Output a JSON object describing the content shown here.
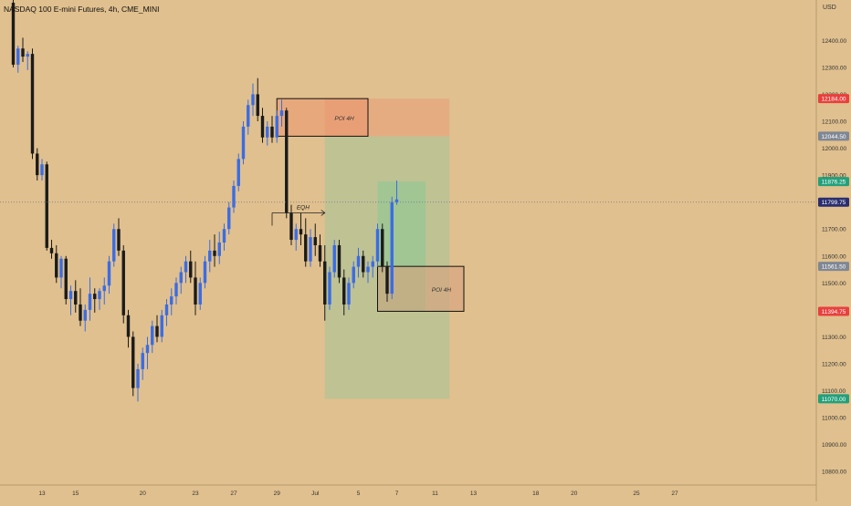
{
  "chart_data": {
    "type": "candlestick",
    "title": "NASDAQ 100 E-mini Futures, 4h, CME_MINI",
    "price_unit": "USD",
    "ylim": [
      10750,
      12550
    ],
    "y_ticks": [
      10800,
      10900,
      11000,
      11100,
      11200,
      11300,
      11400,
      11500,
      11600,
      11700,
      11800,
      11900,
      12000,
      12100,
      12200,
      12300,
      12400
    ],
    "x_tick_labels": [
      {
        "label": "13",
        "bar": 6
      },
      {
        "label": "15",
        "bar": 13
      },
      {
        "label": "20",
        "bar": 27
      },
      {
        "label": "23",
        "bar": 38
      },
      {
        "label": "27",
        "bar": 46
      },
      {
        "label": "29",
        "bar": 55
      },
      {
        "label": "Jul",
        "bar": 63
      },
      {
        "label": "5",
        "bar": 72
      },
      {
        "label": "7",
        "bar": 80
      },
      {
        "label": "11",
        "bar": 88
      },
      {
        "label": "13",
        "bar": 96
      },
      {
        "label": "18",
        "bar": 109
      },
      {
        "label": "20",
        "bar": 117
      },
      {
        "label": "25",
        "bar": 130
      },
      {
        "label": "27",
        "bar": 138
      }
    ],
    "up_color": "#3b6ce4",
    "down_color": "#1b1b1b",
    "candles": [
      {
        "o": 12540,
        "h": 12560,
        "l": 12300,
        "c": 12310
      },
      {
        "o": 12310,
        "h": 12380,
        "l": 12280,
        "c": 12370
      },
      {
        "o": 12370,
        "h": 12410,
        "l": 12320,
        "c": 12340
      },
      {
        "o": 12340,
        "h": 12360,
        "l": 12290,
        "c": 12350
      },
      {
        "o": 12350,
        "h": 12370,
        "l": 11960,
        "c": 11980
      },
      {
        "o": 11980,
        "h": 12000,
        "l": 11880,
        "c": 11900
      },
      {
        "o": 11900,
        "h": 11960,
        "l": 11880,
        "c": 11940
      },
      {
        "o": 11940,
        "h": 11950,
        "l": 11620,
        "c": 11630
      },
      {
        "o": 11630,
        "h": 11660,
        "l": 11590,
        "c": 11610
      },
      {
        "o": 11610,
        "h": 11640,
        "l": 11500,
        "c": 11520
      },
      {
        "o": 11520,
        "h": 11600,
        "l": 11480,
        "c": 11590
      },
      {
        "o": 11590,
        "h": 11600,
        "l": 11420,
        "c": 11440
      },
      {
        "o": 11440,
        "h": 11490,
        "l": 11380,
        "c": 11470
      },
      {
        "o": 11470,
        "h": 11510,
        "l": 11390,
        "c": 11420
      },
      {
        "o": 11420,
        "h": 11480,
        "l": 11340,
        "c": 11360
      },
      {
        "o": 11360,
        "h": 11420,
        "l": 11320,
        "c": 11400
      },
      {
        "o": 11400,
        "h": 11520,
        "l": 11360,
        "c": 11460
      },
      {
        "o": 11460,
        "h": 11480,
        "l": 11390,
        "c": 11440
      },
      {
        "o": 11440,
        "h": 11480,
        "l": 11400,
        "c": 11470
      },
      {
        "o": 11470,
        "h": 11520,
        "l": 11420,
        "c": 11490
      },
      {
        "o": 11490,
        "h": 11600,
        "l": 11460,
        "c": 11580
      },
      {
        "o": 11580,
        "h": 11720,
        "l": 11560,
        "c": 11700
      },
      {
        "o": 11700,
        "h": 11740,
        "l": 11600,
        "c": 11620
      },
      {
        "o": 11620,
        "h": 11640,
        "l": 11350,
        "c": 11380
      },
      {
        "o": 11380,
        "h": 11400,
        "l": 11260,
        "c": 11300
      },
      {
        "o": 11300,
        "h": 11320,
        "l": 11080,
        "c": 11110
      },
      {
        "o": 11110,
        "h": 11200,
        "l": 11060,
        "c": 11180
      },
      {
        "o": 11180,
        "h": 11260,
        "l": 11140,
        "c": 11240
      },
      {
        "o": 11240,
        "h": 11300,
        "l": 11180,
        "c": 11270
      },
      {
        "o": 11270,
        "h": 11360,
        "l": 11240,
        "c": 11340
      },
      {
        "o": 11340,
        "h": 11380,
        "l": 11280,
        "c": 11300
      },
      {
        "o": 11300,
        "h": 11400,
        "l": 11280,
        "c": 11380
      },
      {
        "o": 11380,
        "h": 11440,
        "l": 11340,
        "c": 11420
      },
      {
        "o": 11420,
        "h": 11480,
        "l": 11380,
        "c": 11450
      },
      {
        "o": 11450,
        "h": 11520,
        "l": 11420,
        "c": 11500
      },
      {
        "o": 11500,
        "h": 11560,
        "l": 11460,
        "c": 11540
      },
      {
        "o": 11540,
        "h": 11600,
        "l": 11500,
        "c": 11580
      },
      {
        "o": 11580,
        "h": 11620,
        "l": 11500,
        "c": 11520
      },
      {
        "o": 11520,
        "h": 11580,
        "l": 11380,
        "c": 11420
      },
      {
        "o": 11420,
        "h": 11520,
        "l": 11400,
        "c": 11500
      },
      {
        "o": 11500,
        "h": 11600,
        "l": 11480,
        "c": 11580
      },
      {
        "o": 11580,
        "h": 11660,
        "l": 11540,
        "c": 11620
      },
      {
        "o": 11620,
        "h": 11680,
        "l": 11560,
        "c": 11600
      },
      {
        "o": 11600,
        "h": 11690,
        "l": 11570,
        "c": 11650
      },
      {
        "o": 11650,
        "h": 11720,
        "l": 11620,
        "c": 11700
      },
      {
        "o": 11700,
        "h": 11800,
        "l": 11680,
        "c": 11780
      },
      {
        "o": 11780,
        "h": 11880,
        "l": 11760,
        "c": 11860
      },
      {
        "o": 11860,
        "h": 11980,
        "l": 11840,
        "c": 11960
      },
      {
        "o": 11960,
        "h": 12100,
        "l": 11940,
        "c": 12080
      },
      {
        "o": 12080,
        "h": 12180,
        "l": 12050,
        "c": 12160
      },
      {
        "o": 12160,
        "h": 12240,
        "l": 12120,
        "c": 12200
      },
      {
        "o": 12200,
        "h": 12260,
        "l": 12100,
        "c": 12120
      },
      {
        "o": 12120,
        "h": 12150,
        "l": 12020,
        "c": 12040
      },
      {
        "o": 12040,
        "h": 12100,
        "l": 12010,
        "c": 12080
      },
      {
        "o": 12080,
        "h": 12120,
        "l": 12020,
        "c": 12040
      },
      {
        "o": 12040,
        "h": 12140,
        "l": 12020,
        "c": 12120
      },
      {
        "o": 12120,
        "h": 12180,
        "l": 12080,
        "c": 12140
      },
      {
        "o": 12140,
        "h": 12150,
        "l": 11740,
        "c": 11760
      },
      {
        "o": 11760,
        "h": 11790,
        "l": 11640,
        "c": 11660
      },
      {
        "o": 11660,
        "h": 11720,
        "l": 11620,
        "c": 11700
      },
      {
        "o": 11700,
        "h": 11760,
        "l": 11640,
        "c": 11680
      },
      {
        "o": 11680,
        "h": 11740,
        "l": 11560,
        "c": 11580
      },
      {
        "o": 11580,
        "h": 11700,
        "l": 11560,
        "c": 11670
      },
      {
        "o": 11670,
        "h": 11720,
        "l": 11600,
        "c": 11640
      },
      {
        "o": 11640,
        "h": 11680,
        "l": 11560,
        "c": 11580
      },
      {
        "o": 11580,
        "h": 11640,
        "l": 11360,
        "c": 11420
      },
      {
        "o": 11420,
        "h": 11560,
        "l": 11400,
        "c": 11540
      },
      {
        "o": 11540,
        "h": 11660,
        "l": 11520,
        "c": 11640
      },
      {
        "o": 11640,
        "h": 11660,
        "l": 11500,
        "c": 11520
      },
      {
        "o": 11520,
        "h": 11550,
        "l": 11380,
        "c": 11420
      },
      {
        "o": 11420,
        "h": 11520,
        "l": 11400,
        "c": 11500
      },
      {
        "o": 11500,
        "h": 11580,
        "l": 11480,
        "c": 11560
      },
      {
        "o": 11560,
        "h": 11630,
        "l": 11520,
        "c": 11600
      },
      {
        "o": 11600,
        "h": 11620,
        "l": 11520,
        "c": 11540
      },
      {
        "o": 11540,
        "h": 11580,
        "l": 11500,
        "c": 11560
      },
      {
        "o": 11560,
        "h": 11600,
        "l": 11520,
        "c": 11580
      },
      {
        "o": 11580,
        "h": 11720,
        "l": 11560,
        "c": 11700
      },
      {
        "o": 11700,
        "h": 11720,
        "l": 11540,
        "c": 11560
      },
      {
        "o": 11560,
        "h": 11580,
        "l": 11430,
        "c": 11460
      },
      {
        "o": 11460,
        "h": 11820,
        "l": 11440,
        "c": 11800
      },
      {
        "o": 11800,
        "h": 11880,
        "l": 11790,
        "c": 11810
      }
    ],
    "zones": [
      {
        "label": "POI 4H",
        "from_bar": 55,
        "to_bar": 74,
        "low": 12044.5,
        "high": 12184,
        "fill": "rgba(236,150,110,0.55)",
        "stroke": "#111111"
      },
      {
        "label": "POI 4H",
        "from_bar": 76,
        "to_bar": 94,
        "low": 11394.75,
        "high": 11561.5,
        "fill": "rgba(215,160,125,0.6)",
        "stroke": "#111111"
      }
    ],
    "position": {
      "from_bar": 65,
      "to_bar": 91,
      "entry": 12044.5,
      "stop": 12184,
      "target": 11070,
      "risk_fill": "rgba(236,140,110,0.38)",
      "reward_fill": "rgba(120,200,160,0.32)"
    },
    "inner_target": {
      "from_bar": 76,
      "to_bar": 86,
      "low": 11394.75,
      "high": 11876.25,
      "fill": "rgba(100,205,150,0.32)"
    },
    "eqh": {
      "label": "EQH",
      "from_bar": 54,
      "to_bar": 65,
      "price": 11760
    },
    "current_price_line": 11799.75,
    "price_tags": [
      {
        "value": "12184.00",
        "price": 12184,
        "color": "#e8403d"
      },
      {
        "value": "12044.50",
        "price": 12044.5,
        "color": "#7f8794"
      },
      {
        "value": "11876.25",
        "price": 11876.25,
        "color": "#23a07b"
      },
      {
        "value": "11799.75",
        "price": 11799.75,
        "color": "#2a2e6e"
      },
      {
        "value": "11561.50",
        "price": 11561.5,
        "color": "#7f8794"
      },
      {
        "value": "11394.75",
        "price": 11394.75,
        "color": "#e8403d"
      },
      {
        "value": "11070.00",
        "price": 11070,
        "color": "#23a07b"
      }
    ]
  }
}
